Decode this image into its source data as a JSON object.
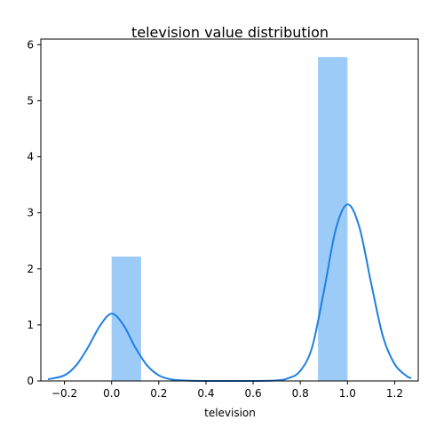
{
  "chart_data": {
    "type": "bar",
    "title": "television value distribution",
    "xlabel": "television",
    "ylabel": "",
    "xlim": [
      -0.3,
      1.3
    ],
    "ylim": [
      0,
      6.1
    ],
    "x_ticks": [
      -0.2,
      0.0,
      0.2,
      0.4,
      0.6,
      0.8,
      1.0,
      1.2
    ],
    "x_tick_labels": [
      "−0.2",
      "0.0",
      "0.2",
      "0.4",
      "0.6",
      "0.8",
      "1.0",
      "1.2"
    ],
    "y_ticks": [
      0,
      1,
      2,
      3,
      4,
      5,
      6
    ],
    "y_tick_labels": [
      "0",
      "1",
      "2",
      "3",
      "4",
      "5",
      "6"
    ],
    "grid": false,
    "bar_color": "#9dcbf8",
    "kde_color": "#1f7fe0",
    "histogram": [
      {
        "x0": 0.0,
        "x1": 0.125,
        "value": 2.22
      },
      {
        "x0": 0.875,
        "x1": 1.0,
        "value": 5.78
      }
    ],
    "kde": {
      "x": [
        -0.27,
        -0.2,
        -0.15,
        -0.1,
        -0.05,
        0.0,
        0.05,
        0.1,
        0.15,
        0.2,
        0.25,
        0.3,
        0.4,
        0.5,
        0.6,
        0.7,
        0.75,
        0.8,
        0.85,
        0.9,
        0.95,
        1.0,
        1.05,
        1.1,
        1.15,
        1.2,
        1.25,
        1.27
      ],
      "y": [
        0.03,
        0.1,
        0.28,
        0.6,
        0.98,
        1.2,
        1.0,
        0.6,
        0.28,
        0.1,
        0.03,
        0.01,
        0.0,
        0.0,
        0.0,
        0.01,
        0.05,
        0.18,
        0.6,
        1.6,
        2.7,
        3.15,
        2.75,
        1.75,
        0.8,
        0.3,
        0.09,
        0.05
      ]
    }
  }
}
